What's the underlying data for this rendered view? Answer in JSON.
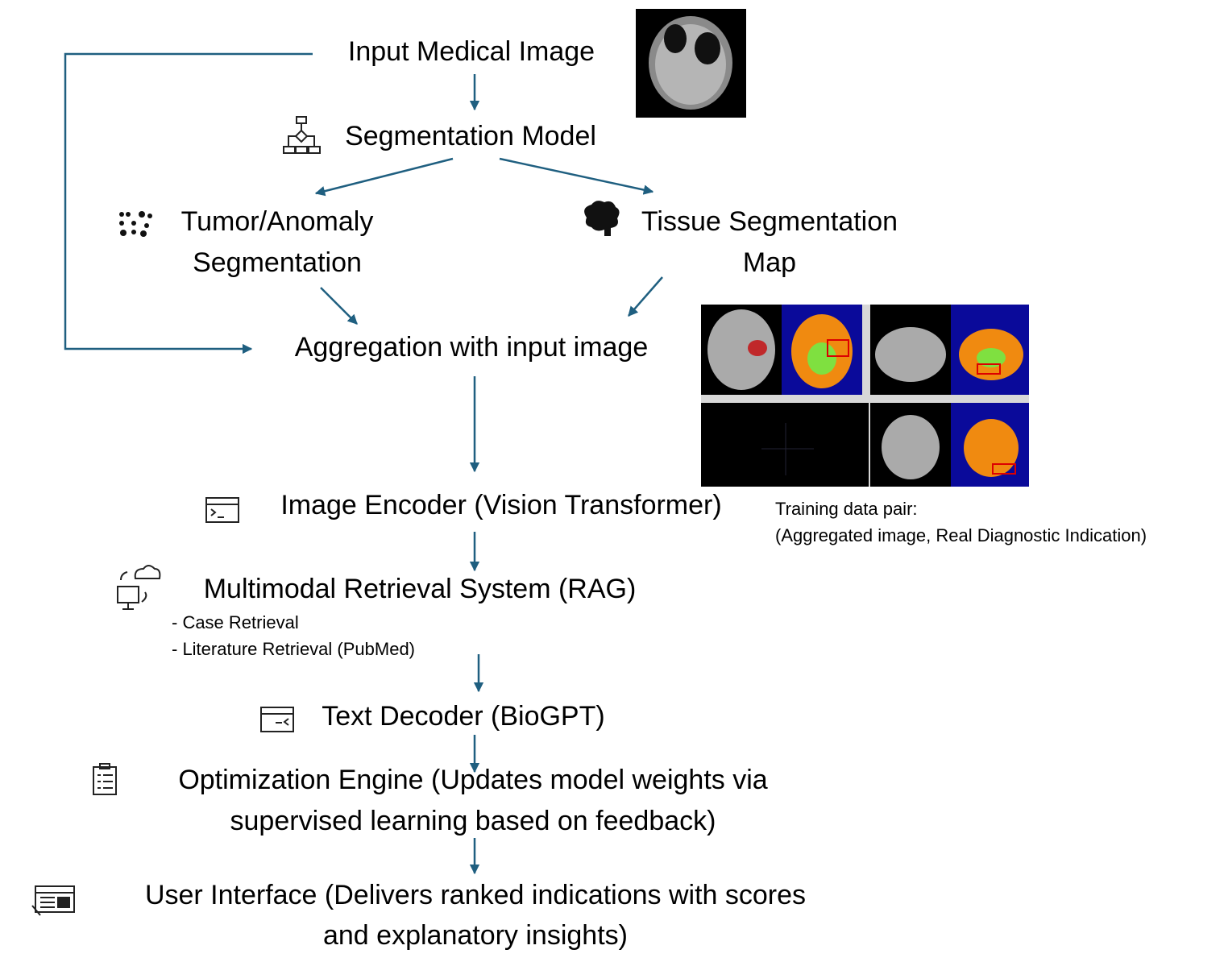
{
  "nodes": [
    {
      "lines": [
        "Input Medical Image"
      ]
    },
    {
      "lines": [
        "Segmentation Model"
      ]
    },
    {
      "lines": [
        "Tumor/Anomaly",
        "Segmentation"
      ]
    },
    {
      "lines": [
        "Tissue Segmentation",
        "Map"
      ]
    },
    {
      "lines": [
        "Aggregation with input image"
      ]
    },
    {
      "lines": [
        "Image Encoder (Vision Transformer)"
      ]
    },
    {
      "lines": [
        "Multimodal Retrieval System (RAG)"
      ],
      "items": [
        "- Case Retrieval",
        "- Literature Retrieval (PubMed)"
      ]
    },
    {
      "lines": [
        "Text Decoder (BioGPT)"
      ]
    },
    {
      "lines": [
        "Optimization Engine (Updates model weights via",
        "supervised learning based on feedback)"
      ]
    },
    {
      "lines": [
        "User Interface (Delivers ranked indications with scores",
        "and explanatory insights)"
      ]
    }
  ],
  "note": {
    "lines": [
      "Training data pair:",
      "(Aggregated image, Real Diagnostic Indication)"
    ]
  }
}
